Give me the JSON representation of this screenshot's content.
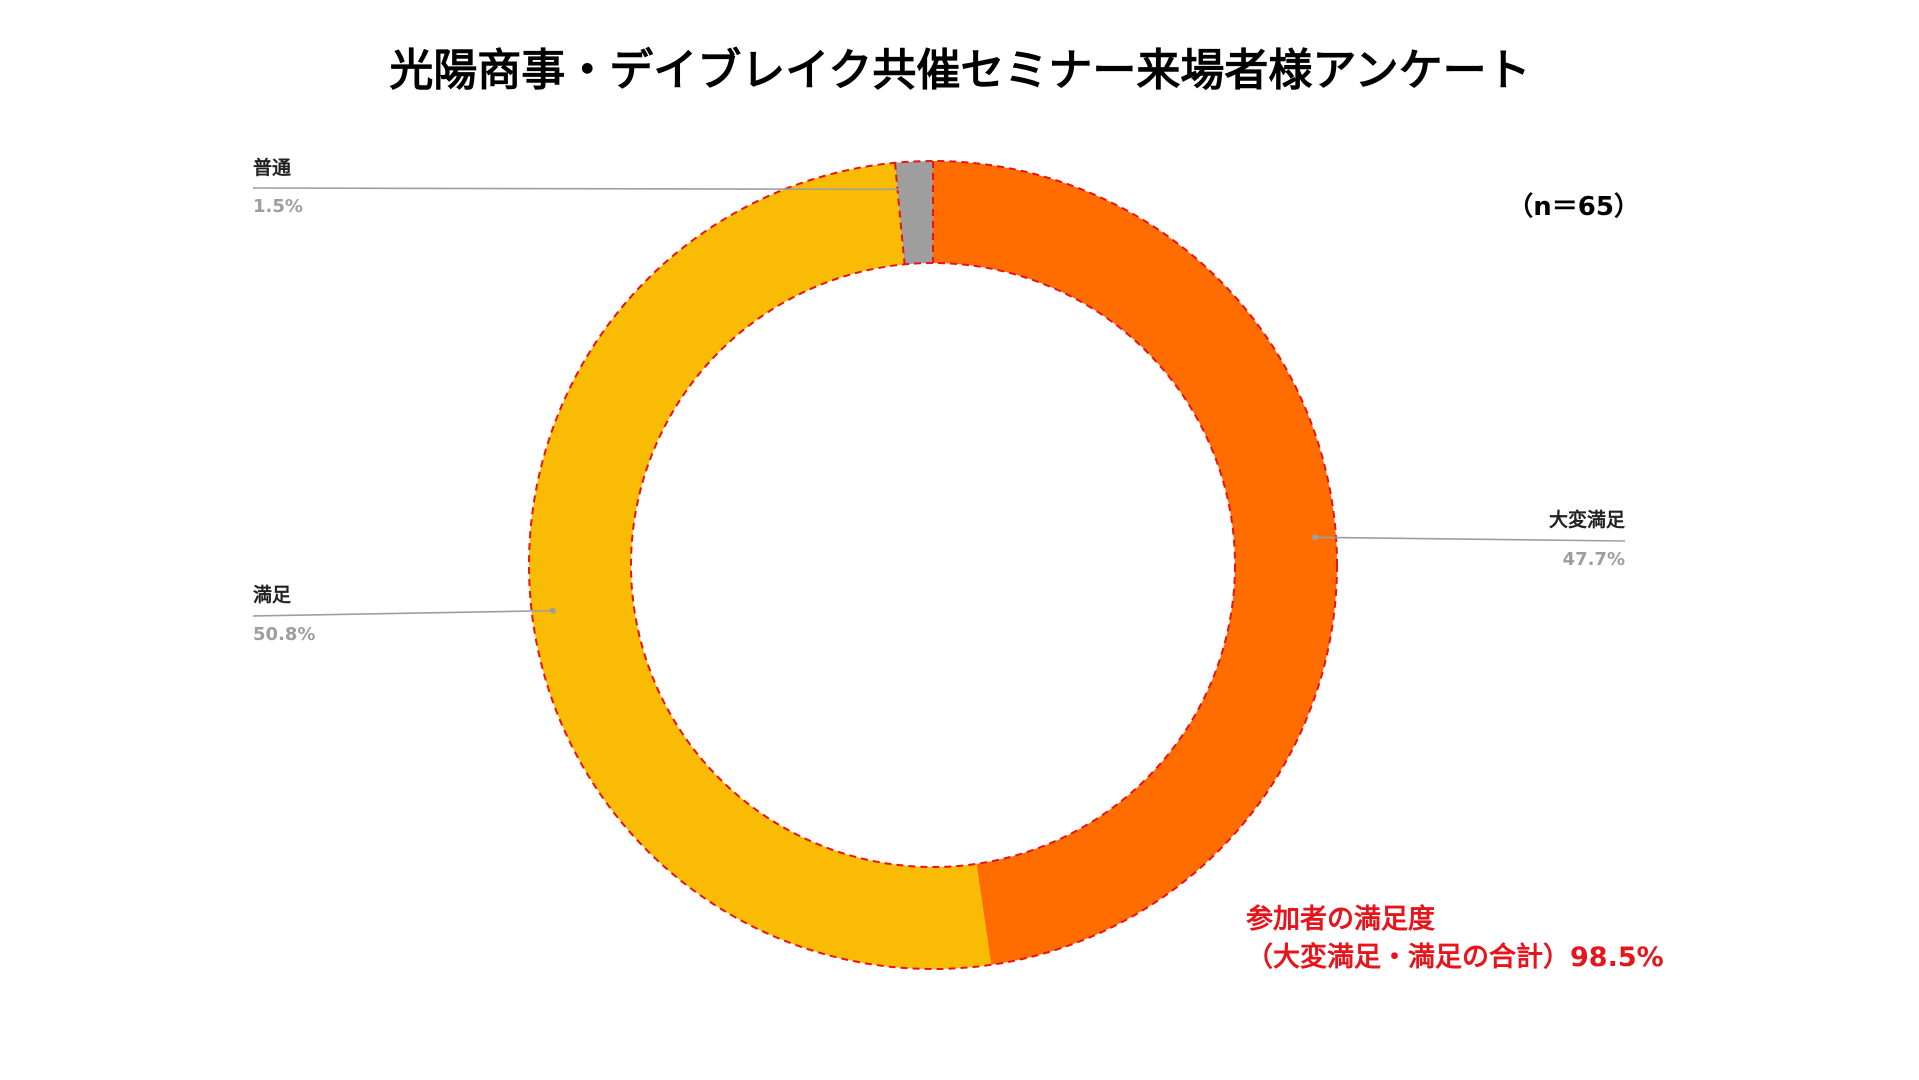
{
  "chart_data": {
    "type": "pie",
    "title": "光陽商事・デイブレイク共催セミナー来場者様アンケート",
    "sample_size_label": "（n＝65）",
    "slices": [
      {
        "label": "大変満足",
        "value": 47.7,
        "value_label": "47.7%",
        "color": "#ff6d01"
      },
      {
        "label": "満足",
        "value": 50.8,
        "value_label": "50.8%",
        "color": "#f9bb04"
      },
      {
        "label": "普通",
        "value": 1.5,
        "value_label": "1.5%",
        "color": "#9e9e9e"
      }
    ],
    "annotation": {
      "line1": "参加者の満足度",
      "line2": "（大変満足・満足の合計）98.5%",
      "color": "#e8141b"
    },
    "highlight_outline_color": "#e8141b",
    "leader_line_color": "#9e9e9e"
  }
}
